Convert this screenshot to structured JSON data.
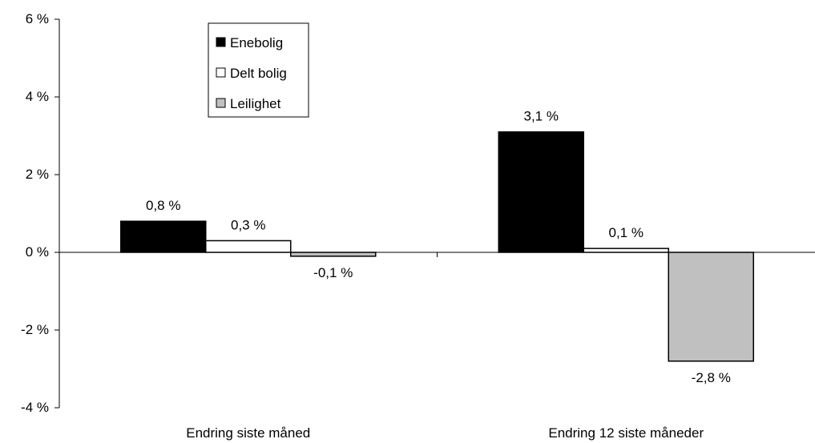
{
  "chart_data": {
    "type": "bar",
    "categories": [
      "Endring siste måned",
      "Endring 12 siste måneder"
    ],
    "series": [
      {
        "name": "Enebolig",
        "values": [
          0.8,
          3.1
        ],
        "labels": [
          "0,8 %",
          "3,1 %"
        ],
        "color": "#000000"
      },
      {
        "name": "Delt bolig",
        "values": [
          0.3,
          0.1
        ],
        "labels": [
          "0,3 %",
          "0,1 %"
        ],
        "color": "#ffffff"
      },
      {
        "name": "Leilighet",
        "values": [
          -0.1,
          -2.8
        ],
        "labels": [
          "-0,1 %",
          "-2,8 %"
        ],
        "color": "#c0c0c0"
      }
    ],
    "ylim": [
      -4,
      6
    ],
    "yticks": [
      6,
      4,
      2,
      0,
      -2,
      -4
    ],
    "ytick_labels": [
      "6 %",
      "4 %",
      "2 %",
      "0 %",
      "-2 %",
      "-4 %"
    ],
    "xlabel": "",
    "ylabel": "",
    "title": "",
    "grid": false,
    "legend_position": "top-left"
  }
}
